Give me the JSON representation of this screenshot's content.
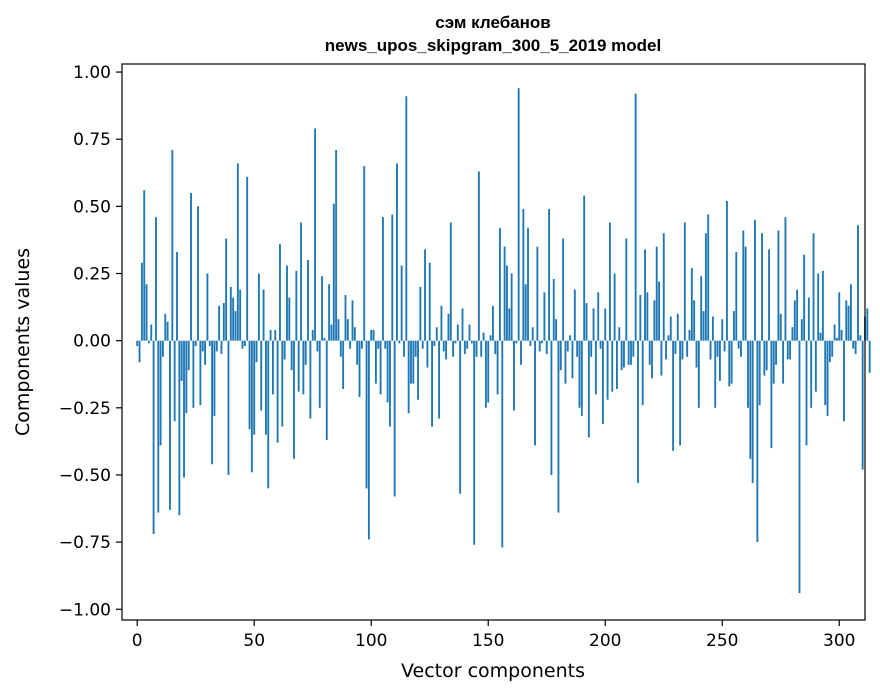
{
  "chart_data": {
    "type": "bar",
    "title_line1": "сэм клебанов",
    "title_line2": "news_upos_skipgram_300_5_2019 model",
    "xlabel": "Vector components",
    "ylabel": "Components values",
    "xlim": [
      -6.5,
      311
    ],
    "ylim": [
      -1.04,
      1.03
    ],
    "xticks": [
      0,
      50,
      100,
      150,
      200,
      250,
      300
    ],
    "xtick_labels": [
      "0",
      "50",
      "100",
      "150",
      "200",
      "250",
      "300"
    ],
    "yticks": [
      1.0,
      0.75,
      0.5,
      0.25,
      0.0,
      -0.25,
      -0.5,
      -0.75,
      -1.0
    ],
    "ytick_labels": [
      "1.00",
      "0.75",
      "0.50",
      "0.25",
      "0.00",
      "−0.25",
      "−0.50",
      "−0.75",
      "−1.00"
    ],
    "bar_color": "#1f77b4",
    "grid": false,
    "values": [
      -0.02,
      -0.08,
      0.29,
      0.56,
      0.21,
      -0.01,
      0.06,
      -0.72,
      0.46,
      -0.64,
      -0.39,
      -0.06,
      0.1,
      0.07,
      -0.63,
      0.71,
      -0.3,
      0.33,
      -0.65,
      -0.15,
      -0.51,
      -0.27,
      -0.11,
      0.55,
      -0.25,
      -0.02,
      0.5,
      -0.24,
      -0.04,
      -0.09,
      0.25,
      -0.02,
      -0.46,
      -0.28,
      -0.04,
      0.13,
      -0.05,
      0.14,
      0.38,
      -0.5,
      0.2,
      0.16,
      0.11,
      0.66,
      0.19,
      -0.03,
      -0.02,
      0.61,
      -0.33,
      -0.49,
      -0.35,
      -0.08,
      0.25,
      -0.26,
      0.19,
      -0.35,
      -0.55,
      0.04,
      -0.2,
      0.04,
      -0.38,
      0.36,
      -0.32,
      -0.07,
      0.28,
      0.16,
      -0.11,
      -0.44,
      0.26,
      -0.19,
      0.44,
      -0.2,
      -0.09,
      0.3,
      -0.29,
      0.04,
      0.79,
      -0.04,
      -0.25,
      0.24,
      0.01,
      -0.37,
      0.21,
      0.06,
      0.51,
      0.71,
      0.08,
      -0.06,
      -0.18,
      0.17,
      0.08,
      -0.03,
      0.15,
      0.05,
      -0.09,
      -0.21,
      -0.03,
      0.65,
      -0.55,
      -0.74,
      0.04,
      0.04,
      -0.16,
      -0.03,
      -0.2,
      0.46,
      -0.03,
      -0.23,
      -0.32,
      0.47,
      -0.58,
      0.66,
      -0.01,
      0.28,
      -0.06,
      0.91,
      -0.27,
      -0.16,
      -0.16,
      -0.06,
      -0.22,
      0.2,
      -0.03,
      0.34,
      -0.1,
      0.29,
      -0.32,
      -0.02,
      0.05,
      -0.29,
      0.13,
      -0.04,
      -0.07,
      0.1,
      0.44,
      -0.06,
      -0.01,
      0.06,
      -0.57,
      0.12,
      -0.05,
      -0.03,
      0.06,
      -0.01,
      -0.76,
      -0.06,
      0.63,
      -0.06,
      0.03,
      -0.25,
      -0.23,
      0.02,
      0.13,
      -0.05,
      -0.2,
      0.42,
      -0.77,
      0.35,
      0.28,
      0.12,
      0.25,
      -0.26,
      -0.01,
      0.94,
      -0.09,
      0.49,
      0.21,
      0.42,
      -0.02,
      0.05,
      -0.39,
      0.35,
      -0.04,
      -0.01,
      0.18,
      -0.05,
      0.49,
      -0.5,
      0.23,
      0.08,
      -0.64,
      -0.11,
      0.38,
      -0.16,
      -0.04,
      0.02,
      -0.14,
      0.19,
      -0.06,
      -0.25,
      -0.28,
      0.54,
      0.14,
      -0.36,
      -0.06,
      0.12,
      -0.2,
      0.18,
      -0.03,
      -0.31,
      0.12,
      -0.22,
      0.44,
      -0.19,
      0.25,
      -0.18,
      0.05,
      -0.11,
      -0.1,
      0.38,
      -0.09,
      -0.09,
      -0.06,
      0.92,
      -0.53,
      0.17,
      -0.24,
      0.34,
      0.18,
      -0.09,
      -0.14,
      0.15,
      0.35,
      0.22,
      -0.13,
      0.4,
      -0.07,
      0.02,
      0.09,
      -0.41,
      -0.05,
      0.1,
      -0.39,
      -0.07,
      0.44,
      -0.06,
      0.04,
      0.27,
      0.15,
      -0.1,
      -0.25,
      0.24,
      0.11,
      0.4,
      0.47,
      -0.07,
      0.09,
      -0.25,
      -0.06,
      -0.15,
      0.08,
      -0.04,
      0.52,
      -0.17,
      -0.16,
      0.11,
      0.33,
      -0.03,
      -0.06,
      0.41,
      0.35,
      -0.25,
      -0.44,
      -0.53,
      0.45,
      -0.75,
      -0.24,
      0.4,
      -0.13,
      -0.11,
      0.34,
      -0.4,
      -0.16,
      -0.09,
      0.41,
      0.1,
      -0.16,
      0.46,
      -0.07,
      -0.07,
      0.05,
      0.15,
      0.19,
      -0.94,
      0.08,
      0.32,
      -0.39,
      0.16,
      -0.25,
      0.4,
      -0.19,
      0.25,
      0.03,
      0.26,
      -0.24,
      -0.28,
      -0.08,
      -0.06,
      0.06,
      0.01,
      0.18,
      0.04,
      -0.3,
      0.15,
      0.13,
      0.21,
      -0.03,
      -0.05,
      0.43,
      0.02,
      -0.48,
      0.09,
      0.12,
      -0.12
    ]
  }
}
